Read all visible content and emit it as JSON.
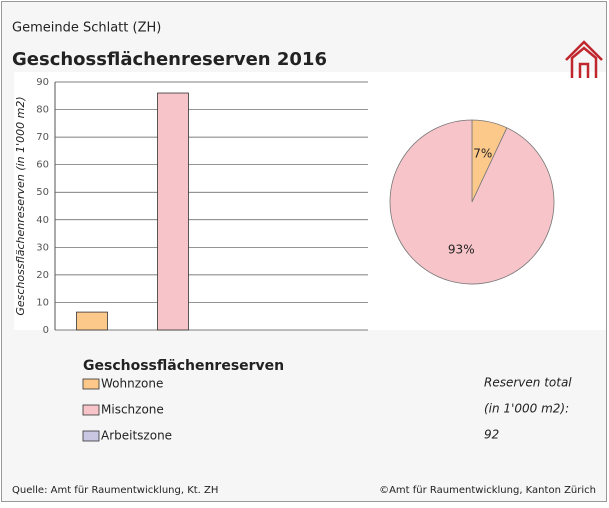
{
  "header": {
    "subtitle": "Gemeinde Schlatt (ZH)",
    "title": "Geschossflächenreserven 2016"
  },
  "chart_data": [
    {
      "type": "bar",
      "ylabel": "Geschossflächenreserven (in 1'000 m2)",
      "ylim": [
        0,
        90
      ],
      "yticks": [
        0,
        10,
        20,
        30,
        40,
        50,
        60,
        70,
        80,
        90
      ],
      "grid": true,
      "legend_title": "Geschossflächenreserven",
      "series": [
        {
          "name": "Wohnzone",
          "color": "#fdc98a",
          "values": [
            6.5
          ]
        },
        {
          "name": "Mischzone",
          "color": "#f7c5c9",
          "values": [
            86
          ]
        },
        {
          "name": "Arbeitszone",
          "color": "#c9c7e2",
          "values": [
            0
          ]
        }
      ]
    },
    {
      "type": "pie",
      "values": [
        7,
        93
      ],
      "value_labels": [
        "7%",
        "93%"
      ],
      "colors": [
        "#fdc98a",
        "#f7c5c9"
      ]
    }
  ],
  "total": {
    "label": "Reserven total",
    "unit": "(in 1'000 m2):",
    "value": "92"
  },
  "footer": {
    "source": "Quelle: Amt für Raumentwicklung, Kt. ZH",
    "copyright": "©Amt für Raumentwicklung, Kanton Zürich"
  }
}
